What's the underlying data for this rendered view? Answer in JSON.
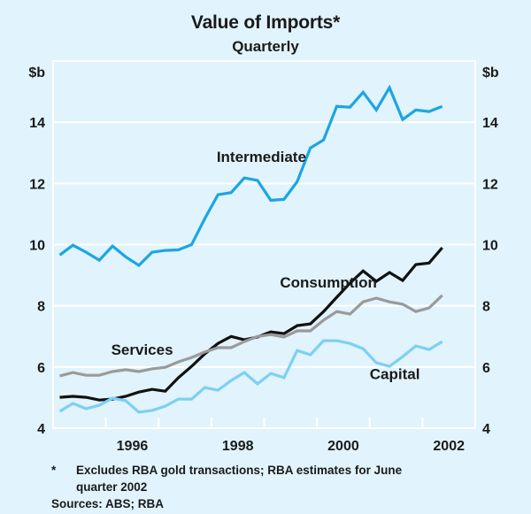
{
  "chart_data": {
    "type": "line",
    "title": "Value of Imports*",
    "subtitle": "Quarterly",
    "xlabel": "",
    "ylabel": "$b",
    "ylabel_right": "$b",
    "ylim": [
      4,
      16
    ],
    "yticks": [
      4,
      6,
      8,
      10,
      12,
      14
    ],
    "xlim": [
      1995.0,
      2003.0
    ],
    "xtick_labels": [
      {
        "label": "1996",
        "center": 1996.5
      },
      {
        "label": "1998",
        "center": 1998.5
      },
      {
        "label": "2000",
        "center": 2000.5
      },
      {
        "label": "2002",
        "center": 2002.5
      }
    ],
    "xtick_marks": [
      1996,
      1997,
      1998,
      1999,
      2000,
      2001,
      2002
    ],
    "grid": true,
    "x": [
      "1995Q1",
      "1995Q2",
      "1995Q3",
      "1995Q4",
      "1996Q1",
      "1996Q2",
      "1996Q3",
      "1996Q4",
      "1997Q1",
      "1997Q2",
      "1997Q3",
      "1997Q4",
      "1998Q1",
      "1998Q2",
      "1998Q3",
      "1998Q4",
      "1999Q1",
      "1999Q2",
      "1999Q3",
      "1999Q4",
      "2000Q1",
      "2000Q2",
      "2000Q3",
      "2000Q4",
      "2001Q1",
      "2001Q2",
      "2001Q3",
      "2001Q4",
      "2002Q1",
      "2002Q2"
    ],
    "series": [
      {
        "name": "Intermediate",
        "color": "#1ba6e2",
        "label_pos": {
          "x": 1998.1,
          "y": 12.7
        },
        "values": [
          9.66,
          9.98,
          9.75,
          9.49,
          9.95,
          9.6,
          9.32,
          9.75,
          9.81,
          9.83,
          10.0,
          10.85,
          11.63,
          11.7,
          12.18,
          12.1,
          11.45,
          11.48,
          12.06,
          13.16,
          13.42,
          14.52,
          14.49,
          14.98,
          14.4,
          15.13,
          14.09,
          14.4,
          14.35,
          14.52
        ]
      },
      {
        "name": "Consumption",
        "color": "#111111",
        "label_pos": {
          "x": 1999.3,
          "y": 8.6
        },
        "values": [
          5.01,
          5.04,
          5.01,
          4.92,
          4.95,
          5.04,
          5.18,
          5.27,
          5.21,
          5.65,
          6.02,
          6.43,
          6.77,
          7.0,
          6.89,
          6.98,
          7.15,
          7.09,
          7.35,
          7.41,
          7.81,
          8.28,
          8.74,
          9.14,
          8.8,
          9.09,
          8.83,
          9.35,
          9.4,
          9.9
        ]
      },
      {
        "name": "Services",
        "color": "#9a9a9a",
        "label_pos": {
          "x": 1996.1,
          "y": 6.4
        },
        "values": [
          5.71,
          5.82,
          5.73,
          5.73,
          5.85,
          5.91,
          5.85,
          5.94,
          5.99,
          6.17,
          6.31,
          6.49,
          6.63,
          6.63,
          6.83,
          7.0,
          7.06,
          6.98,
          7.18,
          7.18,
          7.53,
          7.81,
          7.73,
          8.13,
          8.25,
          8.13,
          8.05,
          7.81,
          7.93,
          8.34
        ]
      },
      {
        "name": "Capital",
        "color": "#7dd0f2",
        "label_pos": {
          "x": 2001.0,
          "y": 5.6
        },
        "values": [
          4.55,
          4.81,
          4.64,
          4.75,
          4.98,
          4.9,
          4.52,
          4.58,
          4.72,
          4.95,
          4.95,
          5.33,
          5.24,
          5.56,
          5.82,
          5.45,
          5.79,
          5.65,
          6.54,
          6.4,
          6.86,
          6.86,
          6.77,
          6.6,
          6.14,
          6.02,
          6.34,
          6.69,
          6.57,
          6.83
        ]
      }
    ]
  },
  "footnote": {
    "marker": "*",
    "line1": "Excludes RBA gold transactions; RBA estimates for June",
    "line2": "quarter 2002",
    "sources": "Sources: ABS; RBA"
  }
}
